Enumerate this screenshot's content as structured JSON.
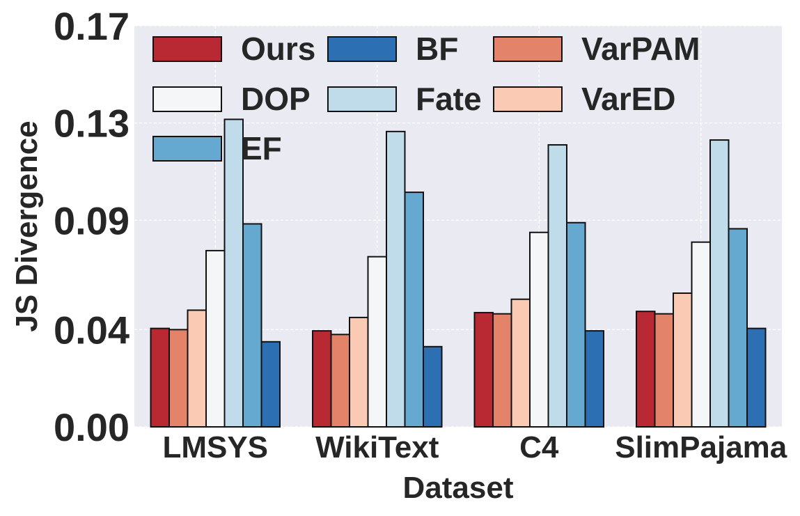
{
  "chart_data": {
    "type": "bar",
    "xlabel": "Dataset",
    "ylabel": "JS Divergence",
    "categories": [
      "LMSYS",
      "WikiText",
      "C4",
      "SlimPajama"
    ],
    "yticks": [
      {
        "value": 0.0,
        "label": "0.00"
      },
      {
        "value": 0.04,
        "label": "0.04"
      },
      {
        "value": 0.085,
        "label": "0.09"
      },
      {
        "value": 0.125,
        "label": "0.13"
      },
      {
        "value": 0.165,
        "label": "0.17"
      }
    ],
    "ylim": [
      0,
      0.165
    ],
    "grid": true,
    "legend_position": "top-left",
    "series": [
      {
        "name": "Ours",
        "color": "#b82933",
        "values": [
          0.0405,
          0.0395,
          0.047,
          0.0475
        ]
      },
      {
        "name": "VarPAM",
        "color": "#e3846a",
        "values": [
          0.04,
          0.038,
          0.0465,
          0.0465
        ]
      },
      {
        "name": "VarED",
        "color": "#fbcab4",
        "values": [
          0.048,
          0.045,
          0.0525,
          0.055
        ]
      },
      {
        "name": "DOP",
        "color": "#f5f6f7",
        "values": [
          0.0725,
          0.07,
          0.08,
          0.076
        ]
      },
      {
        "name": "Fate",
        "color": "#c0dceb",
        "values": [
          0.1265,
          0.1215,
          0.116,
          0.118
        ]
      },
      {
        "name": "EF",
        "color": "#66a9d0",
        "values": [
          0.0835,
          0.0965,
          0.084,
          0.0815
        ]
      },
      {
        "name": "BF",
        "color": "#2d6fb3",
        "values": [
          0.035,
          0.033,
          0.0395,
          0.0405
        ]
      }
    ],
    "legend_order": [
      "Ours",
      "BF",
      "VarPAM",
      "DOP",
      "Fate",
      "VarED",
      "EF"
    ]
  }
}
